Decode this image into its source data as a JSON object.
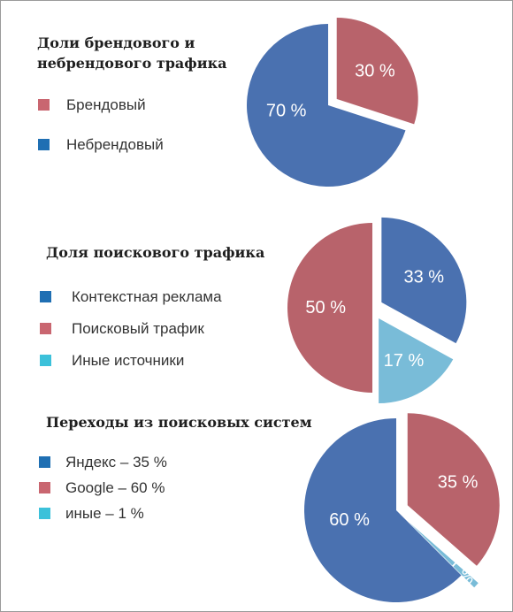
{
  "colors": {
    "blue": "#4a71b0",
    "red": "#b8636b",
    "light_blue": "#79bcd8",
    "swatch_blue": "#1f6fb3",
    "swatch_red": "#c96670",
    "swatch_cyan": "#3cc1da"
  },
  "chart_data": [
    {
      "type": "pie",
      "title": "Доли брендового и небрендового трафика",
      "title_lines": [
        "Доли брендового и",
        "небрендового трафика"
      ],
      "legend": [
        "Брендовый",
        "Небрендовый"
      ],
      "slices": [
        {
          "label": "Брендовый",
          "value": 30,
          "text": "30 %",
          "color": "#b8636b"
        },
        {
          "label": "Небрендовый",
          "value": 70,
          "text": "70 %",
          "color": "#4a71b0"
        }
      ]
    },
    {
      "type": "pie",
      "title": "Доля поискового трафика",
      "legend": [
        "Контекстная реклама",
        "Поисковый трафик",
        "Иные источники"
      ],
      "slices": [
        {
          "label": "Контекстная реклама",
          "value": 33,
          "text": "33 %",
          "color": "#4a71b0"
        },
        {
          "label": "Иные источники",
          "value": 17,
          "text": "17 %",
          "color": "#79bcd8"
        },
        {
          "label": "Поисковый трафик",
          "value": 50,
          "text": "50 %",
          "color": "#b8636b"
        }
      ]
    },
    {
      "type": "pie",
      "title": "Переходы из поисковых систем",
      "legend": [
        "Яндекс – 35 %",
        "Google – 60 %",
        "иные – 1 %"
      ],
      "slices": [
        {
          "label": "Яндекс",
          "value": 35,
          "text": "35 %",
          "color": "#b8636b"
        },
        {
          "label": "иные",
          "value": 1,
          "text": "1 %",
          "color": "#79bcd8"
        },
        {
          "label": "Google",
          "value": 60,
          "text": "60 %",
          "color": "#4a71b0"
        }
      ]
    }
  ]
}
